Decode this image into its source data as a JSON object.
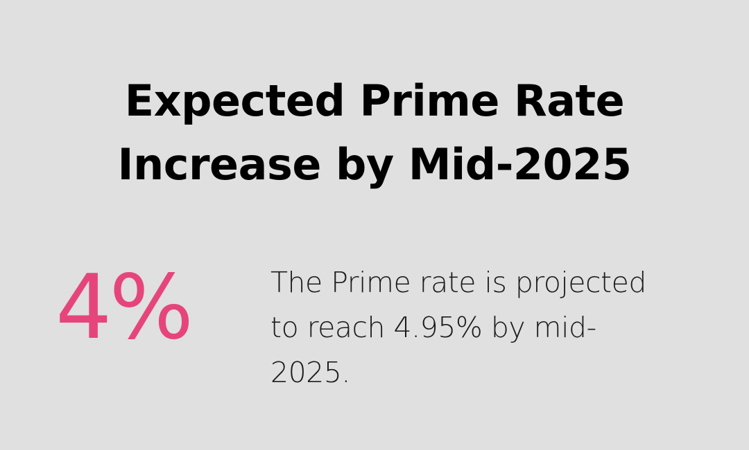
{
  "title": {
    "lines": [
      "Expected Prime Rate",
      "Increase by Mid-2025"
    ]
  },
  "stat": {
    "value": "4%",
    "color": "#e6457b"
  },
  "description": {
    "lines": [
      "The Prime rate is projected",
      "to reach 4.95% by mid-",
      "2025."
    ]
  },
  "background": "#dfe0df"
}
